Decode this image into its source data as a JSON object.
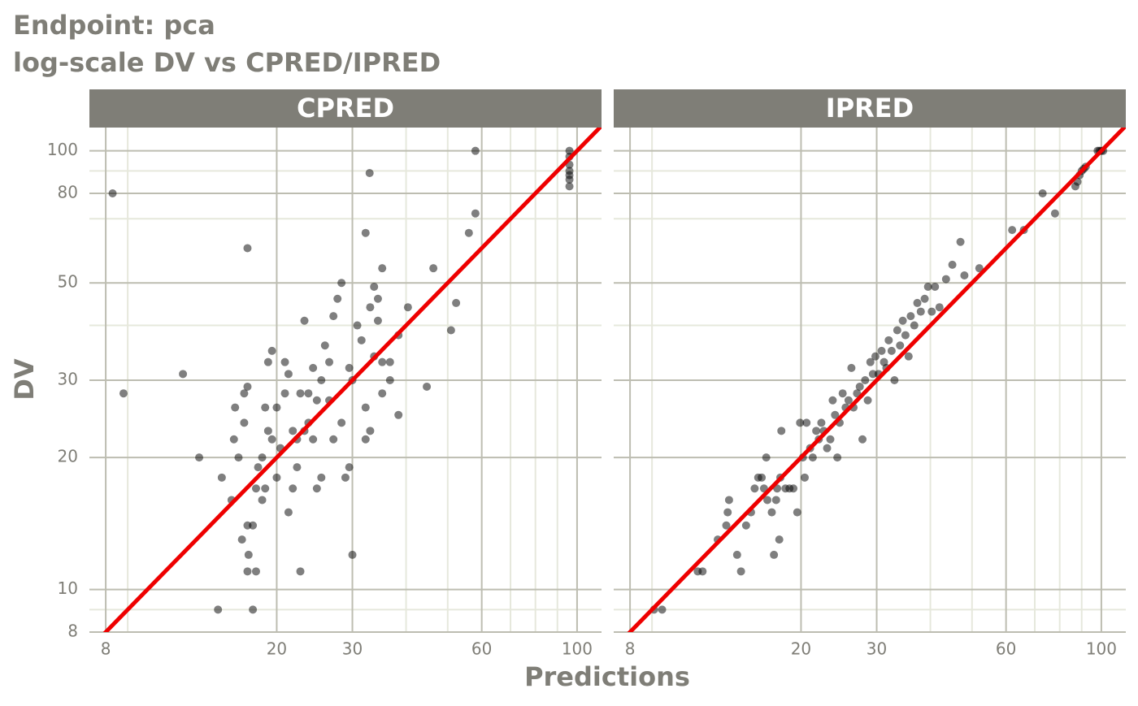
{
  "chart_data": {
    "type": "scatter",
    "title": "Endpoint:  pca",
    "subtitle": "log-scale DV vs CPRED/IPRED",
    "xlabel": "Predictions",
    "ylabel": "DV",
    "xlog": true,
    "ylog": true,
    "xlim": [
      7.33,
      114
    ],
    "ylim": [
      8,
      113
    ],
    "xticks": [
      8,
      20,
      30,
      60,
      100
    ],
    "yticks": [
      8,
      10,
      20,
      30,
      50,
      80,
      100
    ],
    "minor_xticks": [
      9,
      40,
      50,
      70,
      80,
      90
    ],
    "minor_yticks": [
      9,
      40,
      70,
      90
    ],
    "grid": true,
    "point_color": "#000000",
    "point_opacity": 0.5,
    "identity_line_color": "#ee0000",
    "strip_color": "#7f7e77",
    "facets": [
      {
        "name": "CPRED",
        "x": [
          8.3,
          8.8,
          12.1,
          13.2,
          14.6,
          14.9,
          15.7,
          15.9,
          16,
          16.3,
          16.6,
          16.8,
          16.8,
          17.1,
          17.1,
          17.1,
          17.2,
          17.1,
          17.6,
          17.6,
          17.9,
          17.9,
          18.1,
          18.5,
          18.5,
          18.8,
          18.8,
          19.1,
          19.1,
          19.5,
          19.5,
          20,
          20,
          20.4,
          20.9,
          20.9,
          21.3,
          21.3,
          21.8,
          21.8,
          22.3,
          22.3,
          22.7,
          22.7,
          23.2,
          23.2,
          23.7,
          23.7,
          24.3,
          24.3,
          24.8,
          24.8,
          25.4,
          25.4,
          25.9,
          26.5,
          26.5,
          27.1,
          27.1,
          27.7,
          28.3,
          28.3,
          28.9,
          29.5,
          29.5,
          30,
          30,
          30.8,
          31.5,
          32.2,
          32.2,
          32.2,
          32.9,
          33,
          33,
          33.7,
          33.7,
          34.4,
          34.4,
          35.2,
          35.2,
          35.2,
          36.7,
          36.7,
          38.4,
          38.4,
          40.4,
          44.7,
          46.3,
          50.9,
          52.3,
          56,
          58,
          58,
          96,
          96,
          96,
          96,
          96,
          96,
          96
        ],
        "y": [
          80,
          28,
          31,
          20,
          9,
          18,
          16,
          22,
          26,
          20,
          13,
          24,
          28,
          29,
          60,
          14,
          12,
          11,
          9,
          14,
          11,
          17,
          19,
          16,
          20,
          26,
          17,
          33,
          23,
          22,
          35,
          26,
          18,
          21,
          33,
          28,
          31,
          15,
          17,
          23,
          22,
          19,
          11,
          28,
          23,
          41,
          24,
          28,
          32,
          22,
          17,
          27,
          18,
          30,
          36,
          27,
          33,
          42,
          22,
          46,
          50,
          24,
          18,
          19,
          32,
          30,
          12,
          40,
          37,
          22,
          65,
          26,
          89,
          23,
          44,
          49,
          34,
          41,
          46,
          54,
          33,
          28,
          33,
          30,
          38,
          25,
          44,
          29,
          54,
          39,
          45,
          65,
          72,
          100,
          100,
          97,
          93,
          90,
          88,
          86,
          83
        ]
      },
      {
        "name": "IPRED",
        "x": [
          9.1,
          9.5,
          11.5,
          11.8,
          12.8,
          13.4,
          13.5,
          13.6,
          14.2,
          14.5,
          14.9,
          15.3,
          15.6,
          15.9,
          16.2,
          16.4,
          16.6,
          16.7,
          17.1,
          17.3,
          17.5,
          17.6,
          17.8,
          17.9,
          18,
          18.4,
          18.8,
          19.2,
          19.6,
          19.9,
          20.2,
          20.4,
          20.6,
          21,
          21.3,
          21.7,
          22,
          22.3,
          22.6,
          23,
          23.4,
          23.7,
          24,
          24.3,
          24.6,
          25,
          25.4,
          25.8,
          26.2,
          26.5,
          27,
          27.4,
          27.8,
          28.2,
          28.6,
          29,
          29.4,
          29.8,
          30.3,
          30.8,
          31.2,
          31.6,
          32,
          32.5,
          33,
          33.5,
          34,
          34.5,
          35,
          35.6,
          36,
          36.7,
          37.3,
          38,
          38.8,
          39.5,
          40.3,
          41,
          42,
          43.5,
          45,
          47,
          48,
          52,
          62,
          66,
          73,
          78,
          87,
          88,
          89,
          90,
          91,
          92,
          98,
          99,
          100,
          101
        ],
        "y": [
          9,
          9,
          11,
          11,
          13,
          14,
          15,
          16,
          12,
          11,
          14,
          15,
          17,
          18,
          18,
          17,
          20,
          16,
          15,
          12,
          16,
          17,
          13,
          18,
          23,
          17,
          17,
          17,
          15,
          24,
          20,
          18,
          24,
          21,
          20,
          23,
          22,
          24,
          23,
          21,
          22,
          27,
          25,
          20,
          24,
          28,
          26,
          27,
          32,
          26,
          28,
          29,
          22,
          30,
          27,
          33,
          31,
          34,
          31,
          35,
          33,
          32,
          37,
          35,
          30,
          39,
          36,
          41,
          38,
          34,
          42,
          40,
          45,
          43,
          46,
          49,
          43,
          49,
          44,
          51,
          55,
          62,
          52,
          54,
          66,
          66,
          80,
          72,
          83,
          85,
          88,
          90,
          91,
          92,
          100,
          100,
          100,
          100
        ]
      }
    ]
  }
}
